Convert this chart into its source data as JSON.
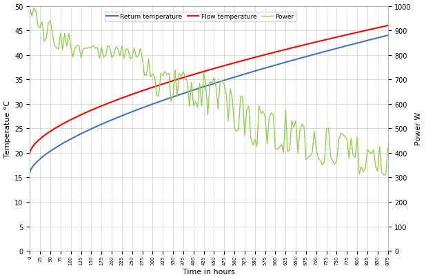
{
  "title": "",
  "xlabel": "Time in hours",
  "ylabel_left": "Temperatue °C",
  "ylabel_right": "Power W",
  "xlim": [
    0,
    875
  ],
  "ylim_left": [
    0,
    50
  ],
  "ylim_right": [
    0,
    1000
  ],
  "yticks_left": [
    0,
    5,
    10,
    15,
    20,
    25,
    30,
    35,
    40,
    45,
    50
  ],
  "yticks_right": [
    0,
    100,
    200,
    300,
    400,
    500,
    600,
    700,
    800,
    900,
    1000
  ],
  "xticks": [
    0,
    25,
    50,
    75,
    100,
    125,
    150,
    175,
    200,
    225,
    250,
    275,
    300,
    325,
    350,
    375,
    400,
    425,
    450,
    475,
    500,
    525,
    550,
    575,
    600,
    625,
    650,
    675,
    700,
    725,
    750,
    775,
    800,
    825,
    850,
    875
  ],
  "return_temp_color": "#4472c4",
  "flow_temp_color": "#ff0000",
  "power_color": "#92d050",
  "legend_labels": [
    "Return temperature",
    "Flow temperature",
    "Power"
  ],
  "background_color": "#ffffff",
  "grid_color": "#d0d0d0",
  "power_segments": [
    {
      "x_start": 0,
      "x_end": 12,
      "base": 975,
      "amplitude": 25
    },
    {
      "x_start": 12,
      "x_end": 25,
      "base": 940,
      "amplitude": 50
    },
    {
      "x_start": 25,
      "x_end": 50,
      "base": 900,
      "amplitude": 50
    },
    {
      "x_start": 50,
      "x_end": 100,
      "base": 860,
      "amplitude": 40
    },
    {
      "x_start": 100,
      "x_end": 275,
      "base": 810,
      "amplitude": 30
    },
    {
      "x_start": 275,
      "x_end": 300,
      "base": 750,
      "amplitude": 50
    },
    {
      "x_start": 300,
      "x_end": 325,
      "base": 680,
      "amplitude": 70
    },
    {
      "x_start": 325,
      "x_end": 375,
      "base": 670,
      "amplitude": 80
    },
    {
      "x_start": 375,
      "x_end": 425,
      "base": 650,
      "amplitude": 80
    },
    {
      "x_start": 425,
      "x_end": 475,
      "base": 630,
      "amplitude": 80
    },
    {
      "x_start": 475,
      "x_end": 525,
      "base": 570,
      "amplitude": 100
    },
    {
      "x_start": 525,
      "x_end": 575,
      "base": 510,
      "amplitude": 90
    },
    {
      "x_start": 575,
      "x_end": 625,
      "base": 490,
      "amplitude": 90
    },
    {
      "x_start": 625,
      "x_end": 650,
      "base": 460,
      "amplitude": 80
    },
    {
      "x_start": 650,
      "x_end": 700,
      "base": 450,
      "amplitude": 80
    },
    {
      "x_start": 700,
      "x_end": 750,
      "base": 430,
      "amplitude": 80
    },
    {
      "x_start": 750,
      "x_end": 800,
      "base": 420,
      "amplitude": 70
    },
    {
      "x_start": 800,
      "x_end": 875,
      "base": 370,
      "amplitude": 60
    }
  ]
}
